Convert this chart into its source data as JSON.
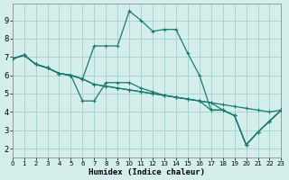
{
  "xlabel": "Humidex (Indice chaleur)",
  "bg_color": "#d4eeeb",
  "grid_color": "#aad4cf",
  "line_color": "#1a7a6e",
  "xlim": [
    0,
    23
  ],
  "ylim": [
    1.5,
    9.9
  ],
  "xticks": [
    0,
    1,
    2,
    3,
    4,
    5,
    6,
    7,
    8,
    9,
    10,
    11,
    12,
    13,
    14,
    15,
    16,
    17,
    18,
    19,
    20,
    21,
    22,
    23
  ],
  "yticks": [
    2,
    3,
    4,
    5,
    6,
    7,
    8,
    9
  ],
  "series": [
    {
      "x": [
        0,
        1,
        2,
        3,
        4,
        5,
        6,
        7,
        8,
        9,
        10,
        11,
        12,
        13,
        14,
        15,
        16,
        17,
        18,
        19,
        20,
        21,
        22,
        23
      ],
      "y": [
        6.9,
        7.1,
        6.6,
        6.4,
        6.1,
        6.0,
        5.8,
        5.5,
        5.4,
        5.3,
        5.2,
        5.1,
        5.0,
        4.9,
        4.8,
        4.7,
        4.6,
        4.5,
        4.4,
        4.3,
        4.2,
        4.1,
        4.0,
        4.1
      ]
    },
    {
      "x": [
        0,
        1,
        2,
        3,
        4,
        5,
        6,
        7,
        8,
        9,
        10,
        11,
        12,
        13,
        14,
        15,
        16,
        17,
        18,
        19,
        20,
        21,
        22,
        23
      ],
      "y": [
        6.9,
        7.1,
        6.6,
        6.4,
        6.1,
        6.0,
        5.8,
        7.6,
        7.6,
        7.6,
        9.5,
        9.0,
        8.4,
        8.5,
        8.5,
        7.2,
        6.0,
        4.1,
        4.1,
        3.8,
        2.2,
        2.9,
        3.5,
        4.1
      ]
    },
    {
      "x": [
        0,
        1,
        2,
        3,
        4,
        5,
        6,
        7,
        8,
        9,
        10,
        11,
        12,
        13,
        14,
        15,
        16,
        17,
        18,
        19,
        20,
        21,
        22,
        23
      ],
      "y": [
        6.9,
        7.1,
        6.6,
        6.4,
        6.1,
        6.0,
        4.6,
        4.6,
        5.6,
        5.6,
        5.6,
        5.3,
        5.1,
        4.9,
        4.8,
        4.7,
        4.6,
        4.5,
        4.1,
        3.8,
        2.2,
        2.9,
        3.5,
        4.1
      ]
    },
    {
      "x": [
        0,
        1,
        2,
        3,
        4,
        5,
        6,
        7,
        8,
        9,
        10,
        11,
        12,
        13,
        14,
        15,
        16,
        17,
        18,
        19,
        20,
        21,
        22,
        23
      ],
      "y": [
        6.9,
        7.1,
        6.6,
        6.4,
        6.1,
        6.0,
        5.8,
        5.5,
        5.4,
        5.3,
        5.2,
        5.1,
        5.0,
        4.9,
        4.8,
        4.7,
        4.6,
        4.1,
        4.1,
        3.8,
        2.2,
        2.9,
        3.5,
        4.1
      ]
    }
  ]
}
